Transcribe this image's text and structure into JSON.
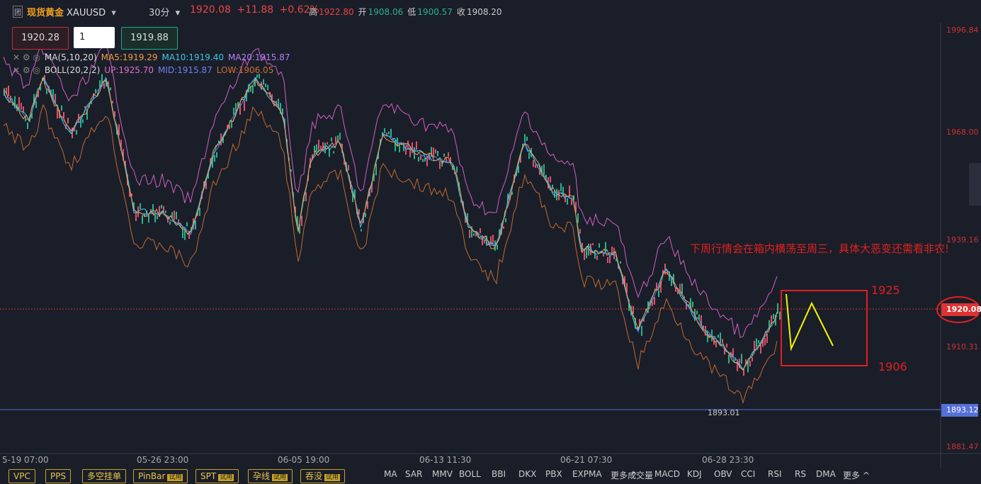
{
  "header": {
    "logo_text": "团",
    "name": "现货黄金",
    "symbol": "XAUUSD",
    "interval": "30分",
    "price": "1920.08",
    "change": "+11.88",
    "change_pct": "+0.62%",
    "stats": [
      {
        "label": "高",
        "value": "1922.80"
      },
      {
        "label": "开",
        "value": "1908.06"
      },
      {
        "label": "低",
        "value": "1900.57"
      },
      {
        "label": "收",
        "value": "1908.20"
      }
    ]
  },
  "order": {
    "sell": "1920.28",
    "qty": "1",
    "buy": "1919.88"
  },
  "indicators": [
    {
      "name": "MA(5,10,20)",
      "values": [
        "MA5:1919.29",
        "MA10:1919.40",
        "MA20:1915.87"
      ]
    },
    {
      "name": "BOLL(20,2,2)",
      "values": [
        "UP:1925.70",
        "MID:1915.87",
        "LOW:1906.05"
      ]
    }
  ],
  "price_axis": [
    "1996.84",
    "1968.00",
    "1939.16",
    "1910.31",
    "1881.47"
  ],
  "current_price": "1920.08",
  "low_line": "1893.12",
  "low_marker": "1893.01",
  "time_axis": [
    "5-19 07:00",
    "05-26 23:00",
    "06-05 19:00",
    "06-13 11:30",
    "06-21 07:30",
    "06-28 23:30"
  ],
  "annotations": {
    "note": "下周行情会在箱内横荡至周三，具体大恶变还需看非农!",
    "upper": "1925",
    "lower": "1906"
  },
  "toolbar": {
    "patterns": [
      {
        "label": "VPC"
      },
      {
        "label": "PPS"
      },
      {
        "label": "多空挂单"
      },
      {
        "label": "PinBar",
        "badge": "试用"
      },
      {
        "label": "SPT",
        "badge": "试用"
      },
      {
        "label": "孕线",
        "badge": "试用"
      },
      {
        "label": "吞没",
        "badge": "试用"
      }
    ],
    "main": [
      "MA",
      "SAR",
      "MMV",
      "BOLL",
      "BBI",
      "DKX",
      "PBX",
      "EXPMA",
      "更多 ^"
    ],
    "sub": [
      "成交量",
      "MACD",
      "KDJ",
      "OBV",
      "CCI",
      "RSI",
      "RS",
      "DMA",
      "更多 ^"
    ]
  }
}
